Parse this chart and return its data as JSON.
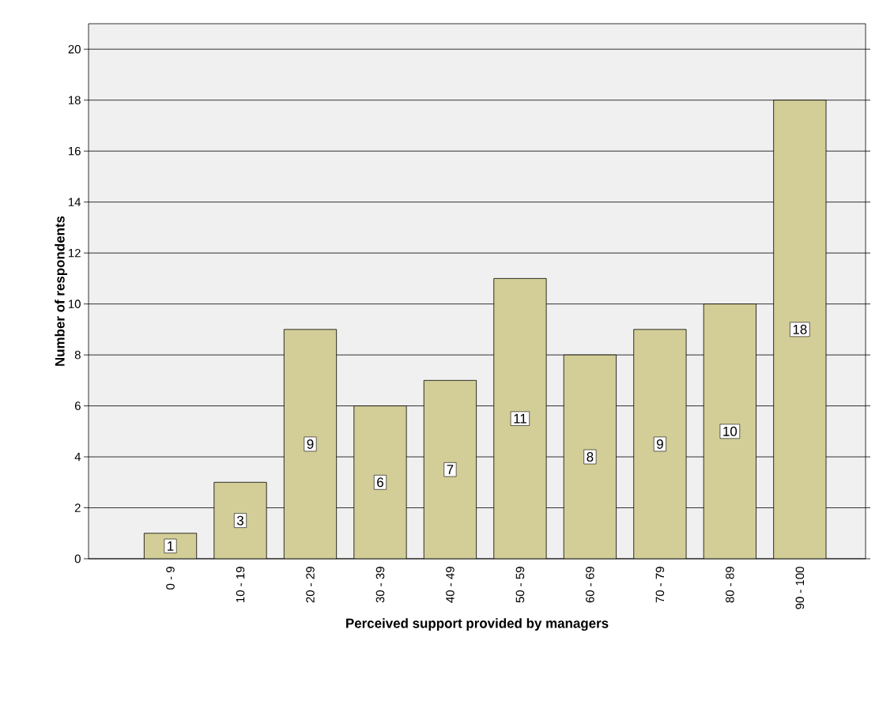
{
  "chart_data": {
    "type": "bar",
    "xlabel": "Perceived support provided by managers",
    "ylabel": "Number of respondents",
    "categories": [
      "0 - 9",
      "10 - 19",
      "20 - 29",
      "30 - 39",
      "40 - 49",
      "50 - 59",
      "60 - 69",
      "70 - 79",
      "80 - 89",
      "90 - 100"
    ],
    "values": [
      1,
      3,
      9,
      6,
      7,
      11,
      8,
      9,
      10,
      18
    ],
    "color": "#d3ce97",
    "ylim": [
      0,
      21
    ],
    "yticks": [
      0,
      2,
      4,
      6,
      8,
      10,
      12,
      14,
      16,
      18,
      20
    ],
    "grid": "y",
    "data_labels": true
  }
}
